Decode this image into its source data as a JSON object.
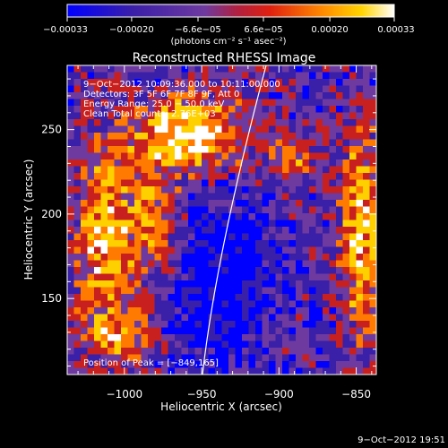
{
  "chart_data": {
    "type": "heatmap",
    "title": "Reconstructed RHESSI Image",
    "xlabel": "Heliocentric X (arcsec)",
    "ylabel": "Heliocentric Y (arcsec)",
    "xlim": [
      -1037,
      -837
    ],
    "ylim": [
      105,
      288
    ],
    "x_ticks": [
      -1000,
      -950,
      -900,
      -850
    ],
    "x_tick_labels": [
      "−1000",
      "−950",
      "−900",
      "−850"
    ],
    "y_ticks": [
      150,
      200,
      250
    ],
    "y_tick_labels": [
      "150",
      "200",
      "250"
    ],
    "colorbar": {
      "range": [
        -0.00033,
        0.00033
      ],
      "tick_labels": [
        "−0.00033",
        "−0.00020",
        "−6.6e−05",
        "6.6e−05",
        "0.00020",
        "0.00033"
      ],
      "tick_values": [
        -0.00033,
        -0.0002,
        -6.6e-05,
        6.6e-05,
        0.0002,
        0.00033
      ],
      "unit_label": "(photons cm⁻² s⁻¹ asec⁻²)",
      "colors": [
        "#0000ff",
        "#3a1fa8",
        "#6e3aa0",
        "#c8201e",
        "#ff7a00",
        "#ffd000",
        "#ffffff"
      ]
    },
    "annotations": [
      "9−Oct−2012 10:09:36.000 to 10:11:00.000",
      "Detectors: 3F 5F 6F 7F 8F 9F, Att 0",
      "Energy Range: 25.0 − 50.0 keV",
      "Clean     Total counts: 2.76E+03"
    ],
    "peak_label": "Position of Peak = [−849,165]",
    "limb_color": "#ffffff"
  },
  "footer": {
    "timestamp": "9−Oct−2012 19:51"
  }
}
